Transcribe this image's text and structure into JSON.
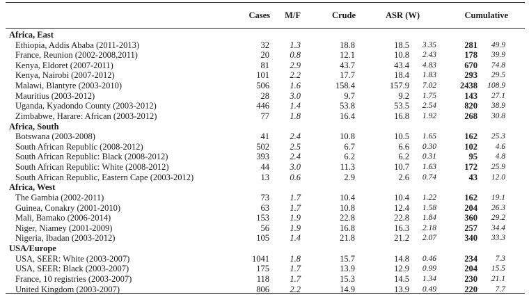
{
  "headers": {
    "cases": "Cases",
    "mf": "M/F",
    "crude": "Crude",
    "asr": "ASR (W)",
    "cumulative": "Cumulative"
  },
  "sections": [
    {
      "name": "Africa, East",
      "rows": [
        {
          "registry": "Ethiopia, Addis Ababa (2011-2013)",
          "cases": "32",
          "mf": "1.3",
          "crude": "18.8",
          "asr": "18.5",
          "asr_se": "3.35",
          "cum": "281",
          "cum_se": "49.9"
        },
        {
          "registry": "France, Reunion (2002-2008,2011)",
          "cases": "20",
          "mf": "0.8",
          "crude": "12.1",
          "asr": "10.8",
          "asr_se": "2.43",
          "cum": "178",
          "cum_se": "39.9"
        },
        {
          "registry": "Kenya, Eldoret (2007-2011)",
          "cases": "81",
          "mf": "2.9",
          "crude": "43.7",
          "asr": "43.4",
          "asr_se": "4.83",
          "cum": "670",
          "cum_se": "74.8"
        },
        {
          "registry": "Kenya, Nairobi (2007-2012)",
          "cases": "101",
          "mf": "2.2",
          "crude": "17.7",
          "asr": "18.4",
          "asr_se": "1.83",
          "cum": "293",
          "cum_se": "29.5"
        },
        {
          "registry": "Malawi, Blantyre (2003-2010)",
          "cases": "506",
          "mf": "1.6",
          "crude": "158.4",
          "asr": "157.9",
          "asr_se": "7.02",
          "cum": "2438",
          "cum_se": "108.9"
        },
        {
          "registry": "Mauritius (2003-2012)",
          "cases": "28",
          "mf": "3.0",
          "crude": "9.7",
          "asr": "9.2",
          "asr_se": "1.75",
          "cum": "143",
          "cum_se": "27.1"
        },
        {
          "registry": "Uganda, Kyadondo County (2003-2012)",
          "cases": "446",
          "mf": "1.4",
          "crude": "53.8",
          "asr": "53.5",
          "asr_se": "2.54",
          "cum": "820",
          "cum_se": "38.9"
        },
        {
          "registry": "Zimbabwe, Harare: African (2003-2012)",
          "cases": "77",
          "mf": "1.8",
          "crude": "16.4",
          "asr": "16.8",
          "asr_se": "1.92",
          "cum": "268",
          "cum_se": "30.8"
        }
      ]
    },
    {
      "name": "Africa, South",
      "rows": [
        {
          "registry": "Botswana (2003-2008)",
          "cases": "41",
          "mf": "2.4",
          "crude": "10.8",
          "asr": "10.5",
          "asr_se": "1.65",
          "cum": "162",
          "cum_se": "25.3"
        },
        {
          "registry": "South African Republic (2008-2012)",
          "cases": "502",
          "mf": "2.5",
          "crude": "6.7",
          "asr": "6.6",
          "asr_se": "0.30",
          "cum": "102",
          "cum_se": "4.6"
        },
        {
          "registry": "South African Republic: Black (2008-2012)",
          "cases": "393",
          "mf": "2.4",
          "crude": "6.2",
          "asr": "6.2",
          "asr_se": "0.31",
          "cum": "95",
          "cum_se": "4.8"
        },
        {
          "registry": "South African Republic: White (2008-2012)",
          "cases": "44",
          "mf": "3.0",
          "crude": "11.3",
          "asr": "10.7",
          "asr_se": "1.63",
          "cum": "172",
          "cum_se": "25.9"
        },
        {
          "registry": "South African Republic, Eastern Cape (2003-2012)",
          "cases": "13",
          "mf": "0.6",
          "crude": "2.9",
          "asr": "2.6",
          "asr_se": "0.74",
          "cum": "43",
          "cum_se": "12.0"
        }
      ]
    },
    {
      "name": "Africa, West",
      "rows": [
        {
          "registry": "The Gambia (2002-2011)",
          "cases": "73",
          "mf": "1.7",
          "crude": "10.4",
          "asr": "10.4",
          "asr_se": "1.22",
          "cum": "162",
          "cum_se": "19.1"
        },
        {
          "registry": "Guinea, Conakry (2001-2010)",
          "cases": "63",
          "mf": "1.7",
          "crude": "10.8",
          "asr": "12.4",
          "asr_se": "1.58",
          "cum": "204",
          "cum_se": "26.3"
        },
        {
          "registry": "Mali, Bamako (2006-2014)",
          "cases": "153",
          "mf": "1.9",
          "crude": "22.8",
          "asr": "22.8",
          "asr_se": "1.84",
          "cum": "360",
          "cum_se": "29.2"
        },
        {
          "registry": "Niger, Niamey (2001-2009)",
          "cases": "56",
          "mf": "1.9",
          "crude": "16.8",
          "asr": "16.3",
          "asr_se": "2.18",
          "cum": "257",
          "cum_se": "34.4"
        },
        {
          "registry": "Nigeria, Ibadan (2003-2012)",
          "cases": "105",
          "mf": "1.4",
          "crude": "21.8",
          "asr": "21.2",
          "asr_se": "2.07",
          "cum": "340",
          "cum_se": "33.3"
        }
      ]
    },
    {
      "name": "USA/Europe",
      "rows": [
        {
          "registry": "USA, SEER: White (2003-2007)",
          "cases": "1041",
          "mf": "1.8",
          "crude": "15.7",
          "asr": "14.8",
          "asr_se": "0.46",
          "cum": "234",
          "cum_se": "7.3"
        },
        {
          "registry": "USA, SEER: Black (2003-2007)",
          "cases": "175",
          "mf": "1.7",
          "crude": "13.9",
          "asr": "12.9",
          "asr_se": "0.99",
          "cum": "204",
          "cum_se": "15.5"
        },
        {
          "registry": "France, 10 registries (2003-2007)",
          "cases": "118",
          "mf": "1.7",
          "crude": "15.3",
          "asr": "14.5",
          "asr_se": "1.34",
          "cum": "230",
          "cum_se": "21.1"
        },
        {
          "registry": "United Kingdom (2003-2007)",
          "cases": "806",
          "mf": "2.2",
          "crude": "14.9",
          "asr": "13.9",
          "asr_se": "0.49",
          "cum": "220",
          "cum_se": "7.7"
        }
      ]
    }
  ]
}
